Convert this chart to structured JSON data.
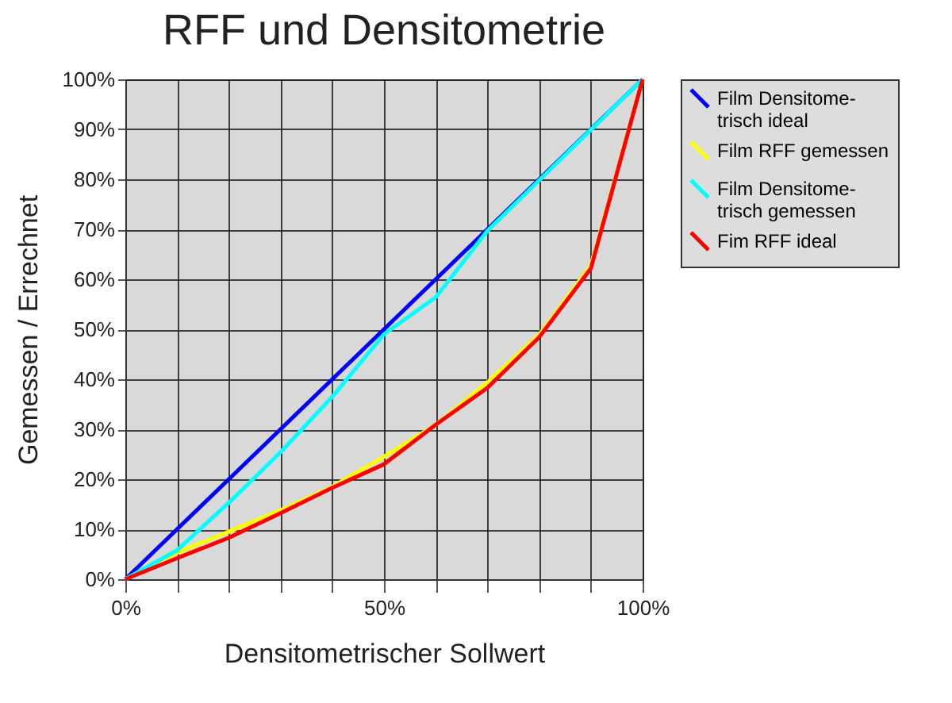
{
  "chart_data": {
    "type": "line",
    "title": "RFF und Densitometrie",
    "xlabel": "Densitometrischer Sollwert",
    "ylabel": "Gemessen / Errechnet",
    "x": [
      0,
      10,
      20,
      30,
      40,
      50,
      60,
      70,
      80,
      90,
      100
    ],
    "series": [
      {
        "name": "Film Densitome-\ntrisch ideal",
        "color": "#0000ff",
        "values": [
          0,
          10,
          20,
          30,
          40,
          50,
          60,
          70,
          80,
          90,
          100
        ]
      },
      {
        "name": "Film RFF gemessen",
        "color": "#ffff00",
        "values": [
          0,
          5.3,
          9.5,
          13.8,
          18.5,
          24.5,
          30.9,
          39.4,
          48.9,
          62.8,
          100
        ]
      },
      {
        "name": "Film Densitome-\ntrisch gemessen",
        "color": "#00ffff",
        "values": [
          0,
          5.8,
          15.3,
          25.4,
          36.5,
          49,
          56.4,
          69.7,
          79.8,
          89.9,
          100
        ]
      },
      {
        "name": "Fim RFF ideal",
        "color": "#ff0000",
        "values": [
          0,
          4.2,
          8.3,
          13.2,
          18.3,
          23,
          30.9,
          38.3,
          48.4,
          62.2,
          100
        ]
      }
    ],
    "xlim": [
      0,
      100
    ],
    "ylim": [
      0,
      100
    ],
    "xticks": [
      {
        "value": 0,
        "label": "0%"
      },
      {
        "value": 10,
        "label": null
      },
      {
        "value": 20,
        "label": null
      },
      {
        "value": 30,
        "label": null
      },
      {
        "value": 40,
        "label": null
      },
      {
        "value": 50,
        "label": "50%"
      },
      {
        "value": 60,
        "label": null
      },
      {
        "value": 70,
        "label": null
      },
      {
        "value": 80,
        "label": null
      },
      {
        "value": 90,
        "label": null
      },
      {
        "value": 100,
        "label": "100%"
      }
    ],
    "yticks": [
      {
        "value": 0,
        "label": "0%"
      },
      {
        "value": 10,
        "label": "10%"
      },
      {
        "value": 20,
        "label": "20%"
      },
      {
        "value": 30,
        "label": "30%"
      },
      {
        "value": 40,
        "label": "40%"
      },
      {
        "value": 50,
        "label": "50%"
      },
      {
        "value": 60,
        "label": "60%"
      },
      {
        "value": 70,
        "label": "70%"
      },
      {
        "value": 80,
        "label": "80%"
      },
      {
        "value": 90,
        "label": "90%"
      },
      {
        "value": 100,
        "label": "100%"
      }
    ],
    "grid": true,
    "legend": "right",
    "marker": "none",
    "line_style": "solid"
  }
}
